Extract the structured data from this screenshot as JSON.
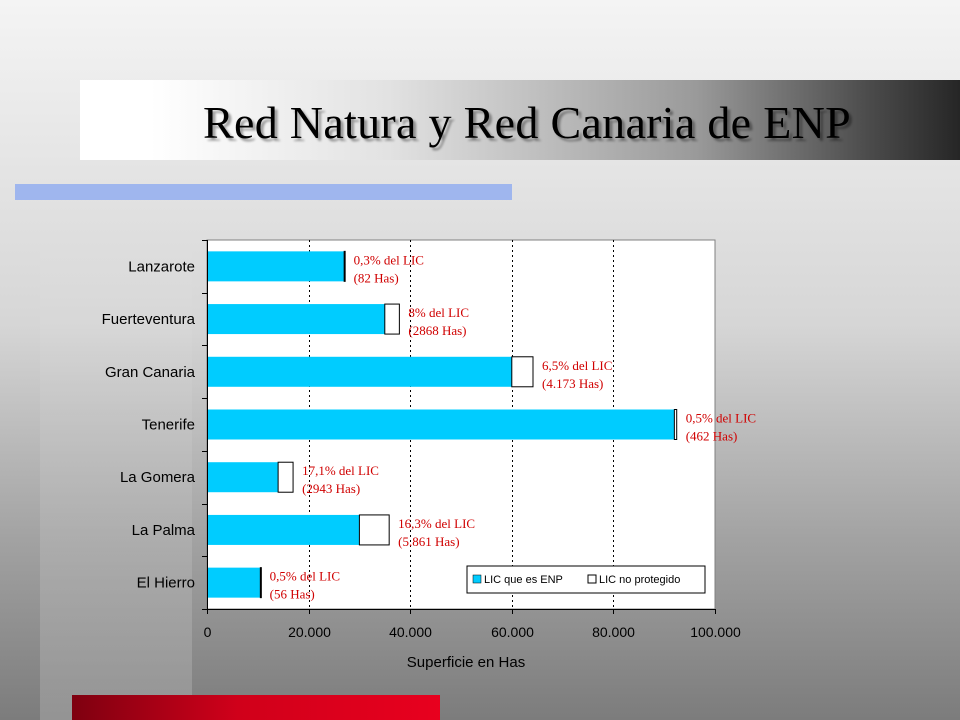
{
  "slide": {
    "title": "Red Natura y Red Canaria de ENP",
    "colors": {
      "accent_top": "#9fb6ee",
      "accent_bottom": "#d0001a",
      "series_enp": "#00ccff",
      "series_unprotected": "#ffffff",
      "annotation": "#d00000"
    }
  },
  "chart_data": {
    "type": "bar",
    "orientation": "horizontal",
    "stacked": true,
    "categories": [
      "Lanzarote",
      "Fuerteventura",
      "Gran Canaria",
      "Tenerife",
      "La Gomera",
      "La Palma",
      "El Hierro"
    ],
    "series": [
      {
        "name": "LIC que es ENP",
        "values": [
          27000,
          35000,
          60000,
          92000,
          14000,
          30000,
          10500
        ]
      },
      {
        "name": "LIC no protegido",
        "values": [
          82,
          2868,
          4173,
          462,
          2943,
          5861,
          56
        ]
      }
    ],
    "annotations": [
      {
        "category": "Lanzarote",
        "line1": "0,3% del LIC",
        "line2": "(82 Has)"
      },
      {
        "category": "Fuerteventura",
        "line1": "8% del LIC",
        "line2": "(2868 Has)"
      },
      {
        "category": "Gran Canaria",
        "line1": "6,5% del LIC",
        "line2": "(4.173 Has)"
      },
      {
        "category": "Tenerife",
        "line1": "0,5% del LIC",
        "line2": "(462 Has)"
      },
      {
        "category": "La Gomera",
        "line1": "17,1% del LIC",
        "line2": "(2943 Has)"
      },
      {
        "category": "La Palma",
        "line1": "16,3% del LIC",
        "line2": "(5.861 Has)"
      },
      {
        "category": "El Hierro",
        "line1": "0,5% del LIC",
        "line2": "(56 Has)"
      }
    ],
    "xlabel": "Superficie en Has",
    "ylabel": "",
    "xlim": [
      0,
      100000
    ],
    "xticks": [
      0,
      20000,
      40000,
      60000,
      80000,
      100000
    ],
    "xtick_labels": [
      "0",
      "20.000",
      "40.000",
      "60.000",
      "80.000",
      "100.000"
    ],
    "grid": "vertical dashed",
    "legend_position": "bottom-right inside"
  }
}
